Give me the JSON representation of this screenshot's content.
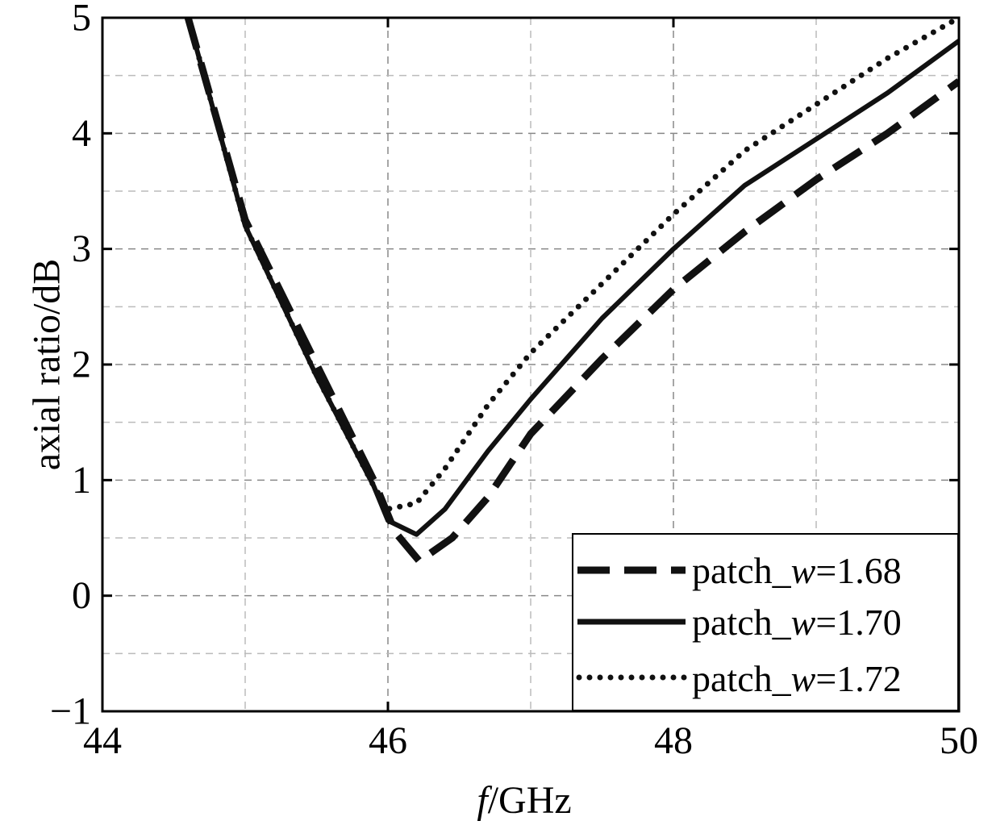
{
  "chart_data": {
    "type": "line",
    "title": "",
    "xlabel_italic": "f",
    "xlabel_rest": "/GHz",
    "ylabel": "axial ratio/dB",
    "xlim": [
      44,
      50
    ],
    "ylim": [
      -1,
      5
    ],
    "x_ticks": [
      44,
      46,
      48,
      50
    ],
    "x_tick_labels": [
      "44",
      "46",
      "48",
      "50"
    ],
    "x_minor_grid": [
      45,
      47,
      49
    ],
    "y_ticks": [
      -1,
      0,
      1,
      2,
      3,
      4,
      5
    ],
    "y_tick_labels": [
      "−1",
      "0",
      "1",
      "2",
      "3",
      "4",
      "5"
    ],
    "y_minor_grid": [
      -0.5,
      0.5,
      1.5,
      2.5,
      3.5,
      4.5
    ],
    "grid": true,
    "legend_position": "bottom-right",
    "series": [
      {
        "name_prefix": "patch_",
        "name_italic": "w",
        "name_suffix": "=1.68",
        "style": "dashed",
        "x": [
          44.6,
          45.0,
          45.5,
          45.9,
          46.05,
          46.22,
          46.45,
          46.7,
          47.0,
          47.5,
          48.0,
          48.5,
          49.0,
          49.5,
          50.0
        ],
        "y": [
          5.0,
          3.25,
          2.0,
          1.0,
          0.55,
          0.3,
          0.5,
          0.85,
          1.4,
          2.05,
          2.65,
          3.15,
          3.6,
          4.0,
          4.45
        ]
      },
      {
        "name_prefix": "patch_",
        "name_italic": "w",
        "name_suffix": "=1.70",
        "style": "solid",
        "x": [
          44.6,
          45.0,
          45.5,
          45.9,
          46.0,
          46.2,
          46.4,
          46.7,
          47.0,
          47.5,
          48.0,
          48.5,
          49.0,
          49.5,
          50.0
        ],
        "y": [
          5.0,
          3.2,
          1.9,
          0.95,
          0.65,
          0.53,
          0.75,
          1.25,
          1.7,
          2.4,
          3.0,
          3.55,
          3.95,
          4.35,
          4.8
        ]
      },
      {
        "name_prefix": "patch_",
        "name_italic": "w",
        "name_suffix": "=1.72",
        "style": "dotted",
        "x": [
          44.6,
          45.0,
          45.5,
          45.9,
          46.0,
          46.2,
          46.4,
          46.7,
          47.0,
          47.5,
          48.0,
          48.5,
          49.0,
          49.5,
          50.0
        ],
        "y": [
          5.0,
          3.2,
          1.9,
          0.95,
          0.75,
          0.8,
          1.1,
          1.65,
          2.1,
          2.7,
          3.3,
          3.85,
          4.25,
          4.65,
          5.0
        ]
      }
    ]
  }
}
